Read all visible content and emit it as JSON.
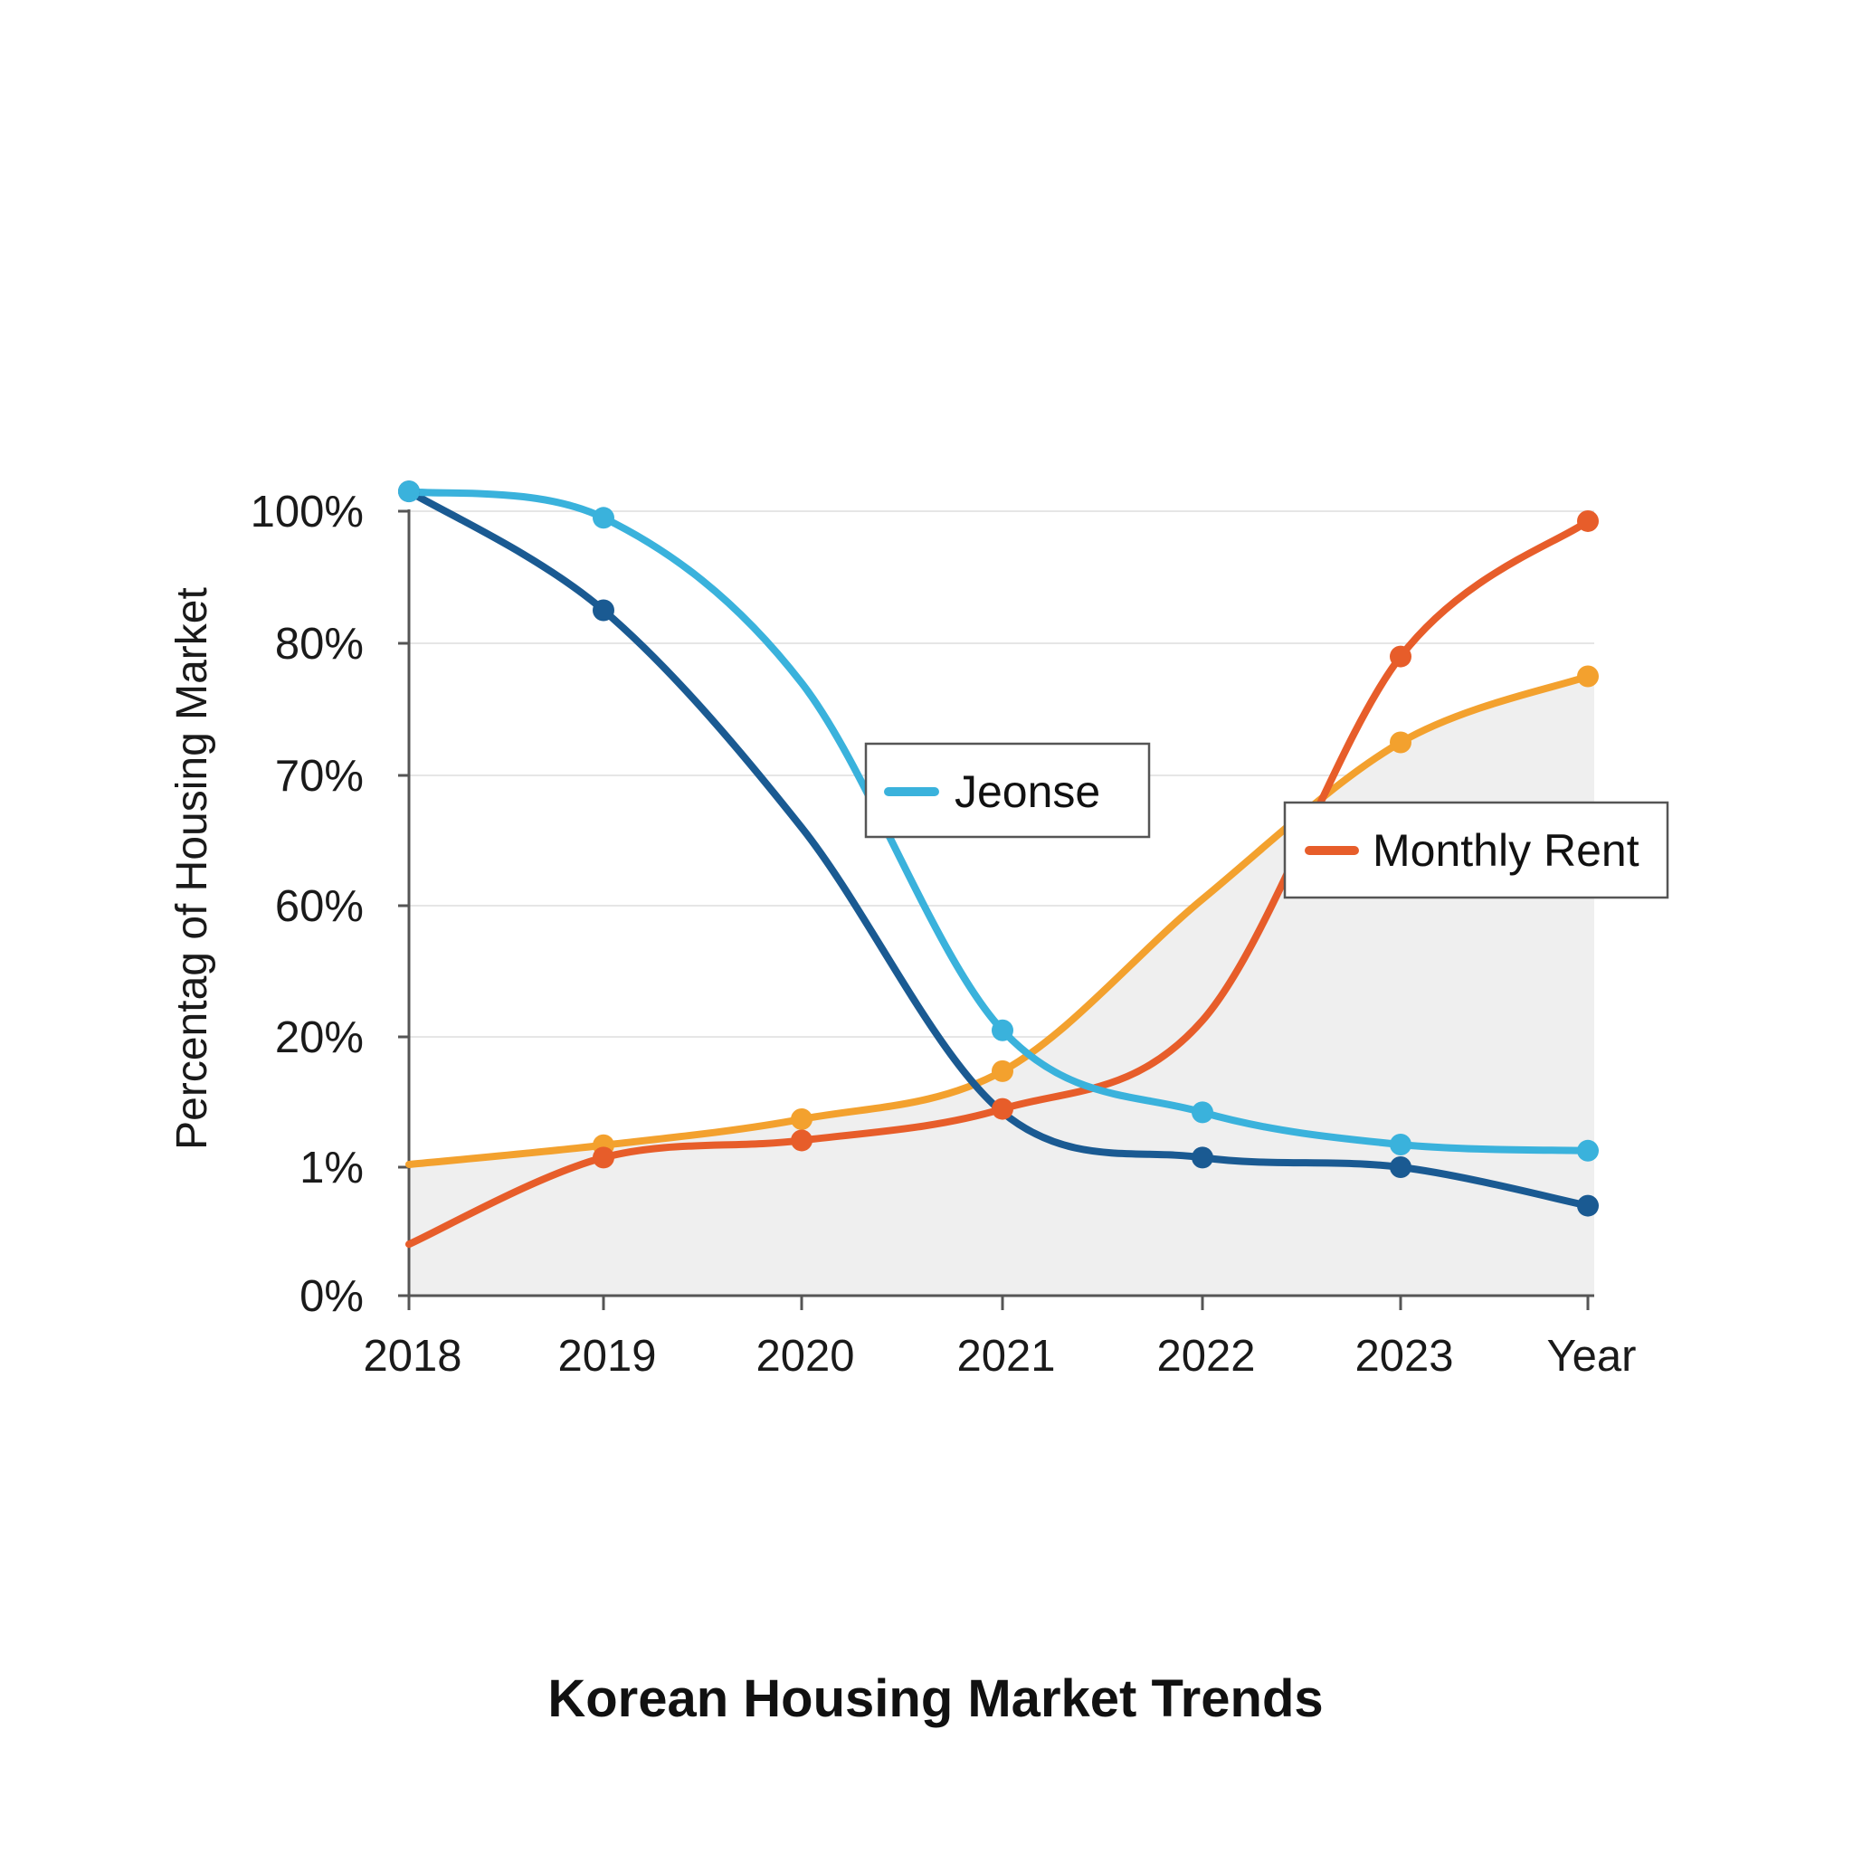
{
  "chart_data": {
    "type": "line",
    "title": "Korean Housing Market Trends",
    "xlabel": "",
    "ylabel": "Percentag of Housing Market",
    "categories": [
      "2018",
      "2019",
      "2020",
      "2021",
      "2022",
      "2023",
      "Year"
    ],
    "y_tick_labels": [
      "0%",
      "1%",
      "20%",
      "60%",
      "70%",
      "80%",
      "100%"
    ],
    "grid": true,
    "shaded_area": true,
    "series": [
      {
        "key": "light_blue",
        "color": "#3AB2DC",
        "values": [
          103,
          99,
          77,
          22,
          9,
          4.3,
          3.4
        ],
        "markers": [
          0,
          1,
          3,
          4,
          5,
          6
        ]
      },
      {
        "key": "dark_blue",
        "color": "#1A5A92",
        "values": [
          103,
          85,
          66,
          9,
          2.4,
          1,
          0.7
        ],
        "markers": [
          0,
          1,
          4,
          5,
          6
        ]
      },
      {
        "key": "orange",
        "color": "#F3A12E",
        "values": [
          1.4,
          4.2,
          8,
          15,
          60.5,
          72.5,
          77.5
        ],
        "markers": [
          1,
          2,
          3,
          5,
          6
        ]
      },
      {
        "key": "red",
        "color": "#E75D2A",
        "values": [
          0.4,
          2.4,
          4.9,
          9.5,
          25,
          79,
          98.5
        ],
        "markers": [
          1,
          2,
          3,
          5,
          6
        ]
      }
    ],
    "legend": [
      {
        "label": "Jeonse",
        "color": "#3AB2DC",
        "placement": "center"
      },
      {
        "label": "Monthly Rent",
        "color": "#E75D2A",
        "placement": "right"
      }
    ]
  }
}
